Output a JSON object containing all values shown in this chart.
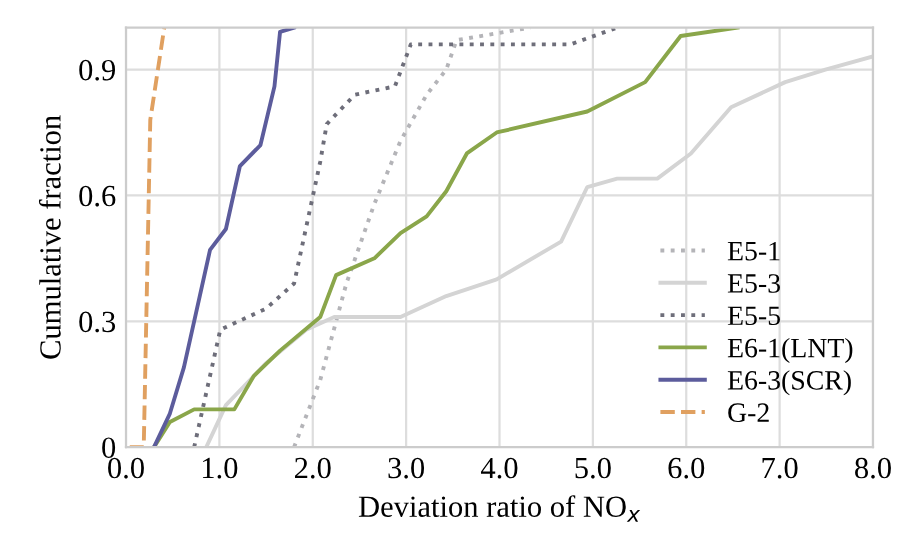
{
  "chart_data": {
    "type": "line",
    "xlabel": "Deviation ratio of NO$_{x}$",
    "ylabel": "Cumulative fraction",
    "xlim": [
      0,
      8
    ],
    "ylim": [
      0,
      1.0
    ],
    "xticks": [
      {
        "value": 0,
        "label": "0.0"
      },
      {
        "value": 1,
        "label": "1.0"
      },
      {
        "value": 2,
        "label": "2.0"
      },
      {
        "value": 3,
        "label": "3.0"
      },
      {
        "value": 4,
        "label": "4.0"
      },
      {
        "value": 5,
        "label": "5.0"
      },
      {
        "value": 6,
        "label": "6.0"
      },
      {
        "value": 7,
        "label": "7.0"
      },
      {
        "value": 8,
        "label": "8.0"
      }
    ],
    "yticks": [
      0,
      0.3,
      0.6,
      0.9
    ],
    "grid": true,
    "legend": "bottom right",
    "marker": "none",
    "series": [
      {
        "name": "E5-1",
        "color": "#b4b4b8",
        "line_style": "dotted",
        "x": [
          1.8,
          2.08,
          2.36,
          2.66,
          2.94,
          3.22,
          3.43,
          3.54,
          4.33
        ],
        "values": [
          0,
          0.16,
          0.39,
          0.58,
          0.73,
          0.84,
          0.9,
          0.97,
          1.0
        ]
      },
      {
        "name": "E5-3",
        "color": "#d4d4d4",
        "line_style": "solid",
        "x": [
          0.86,
          1.07,
          1.5,
          1.93,
          2.23,
          2.94,
          3.43,
          3.97,
          4.66,
          4.94,
          5.26,
          5.69,
          6.05,
          6.48,
          7.06,
          7.49,
          7.98
        ],
        "values": [
          0,
          0.1,
          0.2,
          0.28,
          0.31,
          0.31,
          0.36,
          0.4,
          0.49,
          0.62,
          0.64,
          0.64,
          0.7,
          0.81,
          0.87,
          0.9,
          0.93
        ]
      },
      {
        "name": "E5-5",
        "color": "#6e6e7a",
        "line_style": "dotted",
        "x": [
          0.73,
          1.01,
          1.5,
          1.8,
          2.08,
          2.15,
          2.45,
          2.88,
          3.05,
          3.37,
          4.76,
          5.26
        ],
        "values": [
          0,
          0.28,
          0.33,
          0.39,
          0.68,
          0.77,
          0.84,
          0.86,
          0.96,
          0.96,
          0.96,
          1.0
        ]
      },
      {
        "name": "E6-1(LNT)",
        "color": "#8aa64a",
        "line_style": "solid",
        "x": [
          0.3,
          0.47,
          0.73,
          1.16,
          1.37,
          1.65,
          2.08,
          2.25,
          2.66,
          2.94,
          3.22,
          3.43,
          3.65,
          3.97,
          4.94,
          5.56,
          5.94,
          6.55
        ],
        "values": [
          0,
          0.06,
          0.09,
          0.09,
          0.17,
          0.23,
          0.31,
          0.41,
          0.45,
          0.51,
          0.55,
          0.61,
          0.7,
          0.75,
          0.8,
          0.87,
          0.98,
          1.0
        ]
      },
      {
        "name": "E6-3(SCR)",
        "color": "#5c5c9c",
        "line_style": "solid",
        "x": [
          0.3,
          0.47,
          0.62,
          0.79,
          0.9,
          1.07,
          1.22,
          1.44,
          1.59,
          1.65,
          1.8
        ],
        "values": [
          0,
          0.08,
          0.19,
          0.36,
          0.47,
          0.52,
          0.67,
          0.72,
          0.86,
          0.99,
          1.0
        ]
      },
      {
        "name": "G-2",
        "color": "#e0a060",
        "line_style": "dashed",
        "x": [
          0.04,
          0.19,
          0.26,
          0.41
        ],
        "values": [
          0,
          0,
          0.78,
          1.0
        ]
      }
    ]
  }
}
